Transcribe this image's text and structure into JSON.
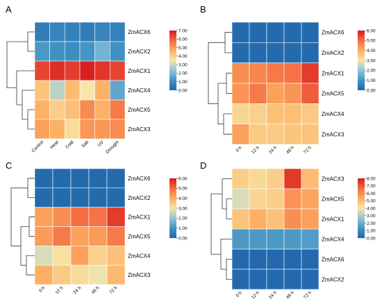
{
  "figure": {
    "title": ""
  },
  "color_scale": {
    "stops": [
      "#2166ac",
      "#4393c3",
      "#92c5de",
      "#f7e6a8",
      "#fdae61",
      "#f46d43",
      "#d7191c"
    ]
  },
  "chart_data": [
    {
      "panel": "A",
      "type": "heatmap",
      "rows": [
        "ZmACX6",
        "ZmACX2",
        "ZmACX1",
        "ZmACX4",
        "ZmACX5",
        "ZmACX3"
      ],
      "columns": [
        "Control",
        "Heat",
        "Cold",
        "Salt",
        "UV",
        "Drought"
      ],
      "values": [
        [
          0.6,
          0.8,
          0.7,
          0.6,
          0.8,
          0.7
        ],
        [
          1.3,
          1.1,
          1.0,
          1.2,
          1.9,
          1.1
        ],
        [
          6.4,
          6.7,
          6.5,
          6.9,
          6.6,
          6.4
        ],
        [
          4.2,
          2.8,
          4.4,
          3.5,
          4.6,
          1.6
        ],
        [
          4.6,
          4.0,
          4.3,
          5.3,
          4.6,
          5.6
        ],
        [
          4.9,
          4.6,
          3.7,
          5.1,
          5.1,
          5.3
        ]
      ],
      "colorbar": {
        "min": 0,
        "max": 7,
        "ticks": [
          "0.00",
          "1.00",
          "2.00",
          "3.00",
          "4.00",
          "5.00",
          "6.00",
          "7.00"
        ]
      }
    },
    {
      "panel": "B",
      "type": "heatmap",
      "rows": [
        "ZmACX6",
        "ZmACX2",
        "ZmACX1",
        "ZmACX5",
        "ZmACX4",
        "ZmACX3"
      ],
      "columns": [
        "0 h",
        "12 h",
        "24 h",
        "48 h",
        "72 h"
      ],
      "values": [
        [
          0.1,
          0.1,
          0.1,
          0.1,
          0.1
        ],
        [
          0.1,
          0.1,
          0.1,
          0.1,
          0.1
        ],
        [
          4.5,
          4.6,
          4.8,
          4.9,
          5.6
        ],
        [
          4.4,
          4.8,
          4.2,
          4.4,
          5.2
        ],
        [
          3.3,
          3.4,
          3.7,
          3.7,
          3.5
        ],
        [
          4.2,
          3.5,
          3.5,
          3.6,
          3.6
        ]
      ],
      "colorbar": {
        "min": 0,
        "max": 6,
        "ticks": [
          "0.00",
          "1.00",
          "2.00",
          "3.00",
          "4.00",
          "5.00",
          "6.00"
        ]
      }
    },
    {
      "panel": "C",
      "type": "heatmap",
      "rows": [
        "ZmACX6",
        "ZmACX2",
        "ZmACX1",
        "ZmACX5",
        "ZmACX4",
        "ZmACX3"
      ],
      "columns": [
        "0 h",
        "12 h",
        "24 h",
        "48 h",
        "72 h"
      ],
      "values": [
        [
          0.1,
          0.1,
          0.1,
          0.1,
          0.1
        ],
        [
          0.1,
          0.1,
          0.1,
          0.1,
          0.1
        ],
        [
          4.2,
          4.5,
          5.0,
          4.9,
          5.6
        ],
        [
          4.3,
          4.8,
          4.2,
          4.3,
          4.8
        ],
        [
          2.7,
          3.1,
          4.2,
          3.4,
          3.7
        ],
        [
          4.0,
          3.5,
          3.2,
          2.9,
          3.8
        ]
      ],
      "colorbar": {
        "min": 0,
        "max": 6,
        "ticks": [
          "0.00",
          "1.00",
          "2.00",
          "3.00",
          "4.00",
          "5.00",
          "6.00"
        ]
      }
    },
    {
      "panel": "D",
      "type": "heatmap",
      "rows": [
        "ZmACX3",
        "ZmACX5",
        "ZmACX1",
        "ZmACX4",
        "ZmACX6",
        "ZmACX2"
      ],
      "columns": [
        "0 h",
        "12 h",
        "24 h",
        "48 h",
        "72 h"
      ],
      "values": [
        [
          4.6,
          4.3,
          4.6,
          7.5,
          5.0
        ],
        [
          3.6,
          4.4,
          4.6,
          5.9,
          5.5
        ],
        [
          4.8,
          5.3,
          4.9,
          6.0,
          5.6
        ],
        [
          1.5,
          1.5,
          1.5,
          1.5,
          1.6
        ],
        [
          0.1,
          0.1,
          0.1,
          0.1,
          0.1
        ],
        [
          0.1,
          0.1,
          0.1,
          0.1,
          0.1
        ]
      ],
      "colorbar": {
        "min": 0,
        "max": 8,
        "ticks": [
          "0.00",
          "1.00",
          "2.00",
          "3.00",
          "4.00",
          "5.00",
          "6.00",
          "7.00",
          "8.00"
        ]
      }
    }
  ]
}
